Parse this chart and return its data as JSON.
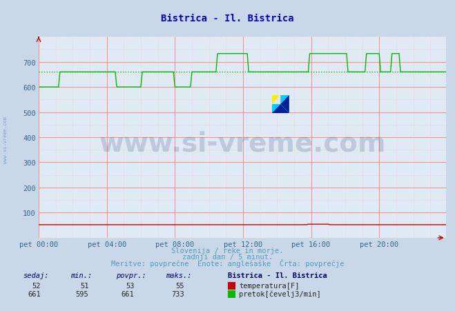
{
  "title": "Bistrica - Il. Bistrica",
  "title_color": "#0000cc",
  "bg_color": "#c8d8e8",
  "plot_bg_color": "#e0eaf4",
  "grid_color_major": "#ff8888",
  "grid_color_minor": "#ffbbbb",
  "xlim": [
    0,
    287
  ],
  "ylim": [
    0,
    800
  ],
  "yticks": [
    100,
    200,
    300,
    400,
    500,
    600,
    700
  ],
  "xtick_labels": [
    "pet 00:00",
    "pet 04:00",
    "pet 08:00",
    "pet 12:00",
    "pet 16:00",
    "pet 20:00"
  ],
  "xtick_positions": [
    0,
    48,
    96,
    144,
    192,
    240
  ],
  "temp_color": "#cc0000",
  "flow_color": "#00bb00",
  "avg_flow_color": "#00bb00",
  "avg_flow_value": 661,
  "avg_temp_value": 53,
  "footer_line1": "Slovenija / reke in morje.",
  "footer_line2": "zadnji dan / 5 minut.",
  "footer_line3": "Meritve: povprečne  Enote: anglešaške  Črta: povprečje",
  "footer_color": "#5599bb",
  "table_header_color": "#000066",
  "watermark_text": "www.si-vreme.com",
  "watermark_color": "#1a3a6a",
  "watermark_alpha": 0.18,
  "temp_sedaj": 52,
  "temp_min": 51,
  "temp_povpr": 53,
  "temp_maks": 55,
  "flow_sedaj": 661,
  "flow_min": 595,
  "flow_povpr": 661,
  "flow_maks": 733,
  "legend_title": "Bistrica - Il. Bistrica",
  "arrow_color": "#cc0000",
  "side_watermark_color": "#4466aa",
  "side_watermark_alpha": 0.5
}
